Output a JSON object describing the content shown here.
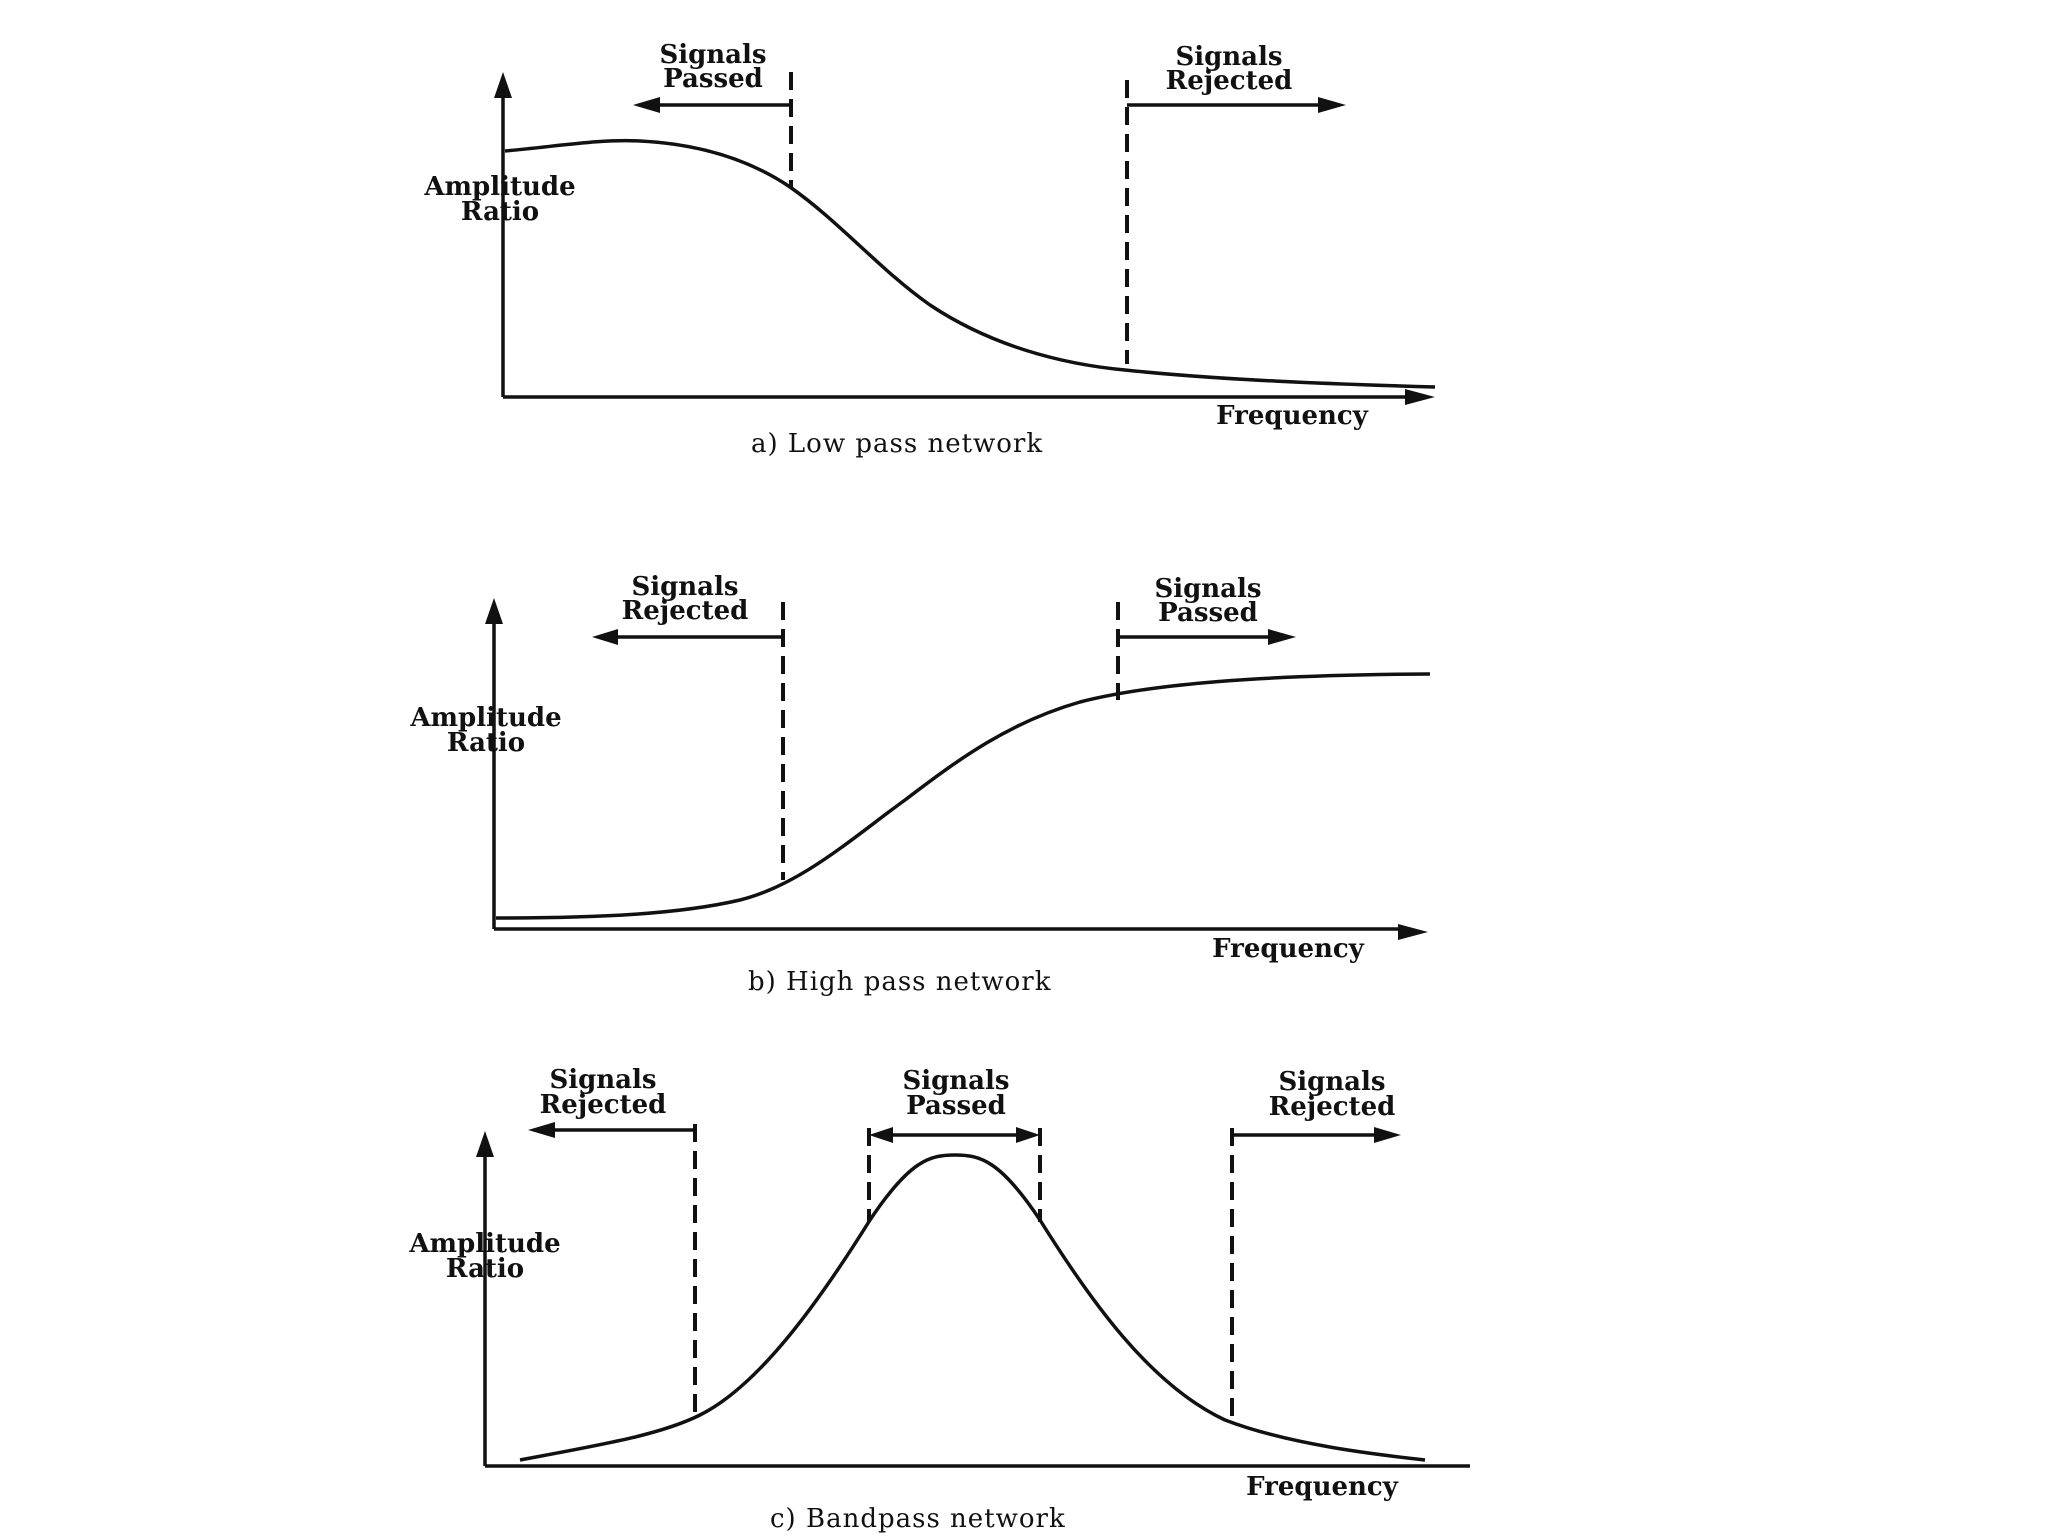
{
  "panels": [
    {
      "caption": "a)   Low pass network",
      "y_label": [
        "Amplitude",
        "Ratio"
      ],
      "x_label": "Frequency",
      "annotations": [
        {
          "lines": [
            "Signals",
            "Passed"
          ],
          "direction": "left"
        },
        {
          "lines": [
            "Signals",
            "Rejected"
          ],
          "direction": "right"
        }
      ]
    },
    {
      "caption": "b)   High pass network",
      "y_label": [
        "Amplitude",
        "Ratio"
      ],
      "x_label": "Frequency",
      "annotations": [
        {
          "lines": [
            "Signals",
            "Rejected"
          ],
          "direction": "left"
        },
        {
          "lines": [
            "Signals",
            "Passed"
          ],
          "direction": "right"
        }
      ]
    },
    {
      "caption": "c)   Bandpass network",
      "y_label": [
        "Amplitude",
        "Ratio"
      ],
      "x_label": "Frequency",
      "annotations": [
        {
          "lines": [
            "Signals",
            "Rejected"
          ],
          "direction": "left"
        },
        {
          "lines": [
            "Signals",
            "Passed"
          ],
          "direction": "both"
        },
        {
          "lines": [
            "Signals",
            "Rejected"
          ],
          "direction": "right"
        }
      ]
    }
  ]
}
